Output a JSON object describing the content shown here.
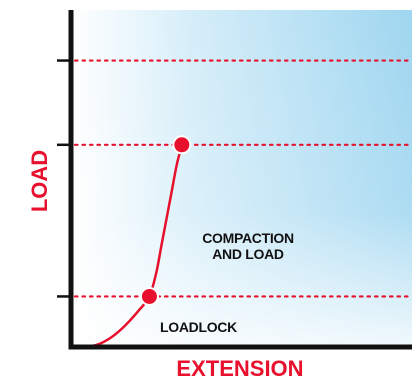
{
  "chart_data": {
    "type": "line",
    "title": "",
    "xlabel": "EXTENSION",
    "ylabel": "LOAD",
    "xlim": [
      0,
      100
    ],
    "ylim": [
      0,
      100
    ],
    "grid": false,
    "series": [
      {
        "points": [
          [
            0,
            0
          ],
          [
            4,
            0
          ],
          [
            8,
            0.8
          ],
          [
            12,
            3
          ],
          [
            16,
            6.5
          ],
          [
            20,
            11
          ],
          [
            23,
            15
          ],
          [
            25,
            22
          ],
          [
            26.5,
            30
          ],
          [
            28,
            38
          ],
          [
            29.5,
            46
          ],
          [
            31,
            54
          ],
          [
            32.5,
            60
          ]
        ]
      }
    ],
    "markers": [
      {
        "x": 23,
        "y": 15
      },
      {
        "x": 32.5,
        "y": 60
      }
    ],
    "reference_lines": [
      {
        "y": 15
      },
      {
        "y": 60
      },
      {
        "y": 85
      }
    ],
    "annotations": [
      {
        "key": "compaction",
        "lines": [
          "COMPACTION",
          "AND LOAD"
        ]
      },
      {
        "key": "loadlock",
        "lines": [
          "LOADLOCK"
        ]
      }
    ],
    "colors": {
      "axis": "#111111",
      "curve": "#e8112d",
      "reference_line": "#e8112d",
      "axis_title": "#e8112d",
      "background_top_left": "#ffffff",
      "background_top_right": "#a9dbf2",
      "background_bottom": "#ffffff"
    }
  }
}
